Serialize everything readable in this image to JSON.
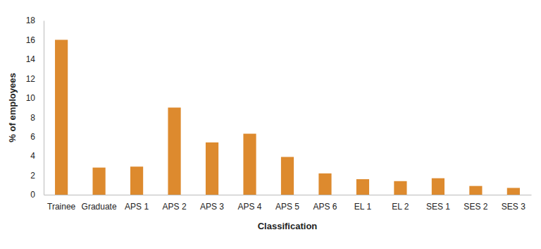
{
  "chart_data": {
    "type": "bar",
    "x_label": "Classification",
    "y_label": "% of employees",
    "categories": [
      "Trainee",
      "Graduate",
      "APS 1",
      "APS 2",
      "APS 3",
      "APS 4",
      "APS 5",
      "APS 6",
      "EL 1",
      "EL 2",
      "SES 1",
      "SES 2",
      "SES 3"
    ],
    "values": [
      16,
      2.8,
      2.9,
      9.0,
      5.4,
      6.3,
      3.9,
      2.2,
      1.6,
      1.4,
      1.7,
      0.9,
      0.7
    ],
    "color": "#dd8a2e",
    "ylim": [
      0,
      18
    ],
    "yticks": [
      0,
      2,
      4,
      6,
      8,
      10,
      12,
      14,
      16,
      18
    ],
    "grid": false
  }
}
